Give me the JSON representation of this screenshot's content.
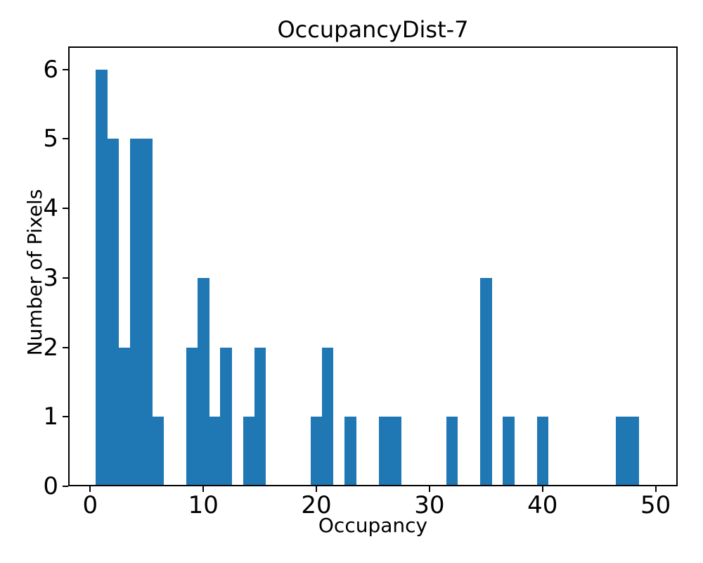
{
  "chart_data": {
    "type": "bar",
    "subtype": "histogram",
    "title": "OccupancyDist-7",
    "xlabel": "Occupancy",
    "ylabel": "Number of Pixels",
    "bar_color": "#1f77b4",
    "grid": false,
    "legend": null,
    "bin_start": 0.5,
    "bin_width": 1,
    "counts": [
      6,
      5,
      2,
      5,
      5,
      1,
      0,
      0,
      2,
      3,
      1,
      2,
      0,
      1,
      2,
      0,
      0,
      0,
      0,
      1,
      2,
      0,
      1,
      0,
      0,
      1,
      1,
      0,
      0,
      0,
      0,
      1,
      0,
      0,
      3,
      0,
      1,
      0,
      0,
      1,
      0,
      0,
      0,
      0,
      0,
      0,
      1,
      1,
      0
    ],
    "xticks": [
      0,
      10,
      20,
      30,
      40,
      50
    ],
    "yticks": [
      0,
      1,
      2,
      3,
      4,
      5,
      6
    ],
    "xlim": [
      -1.95,
      51.95
    ],
    "ylim": [
      0,
      6.33
    ]
  }
}
